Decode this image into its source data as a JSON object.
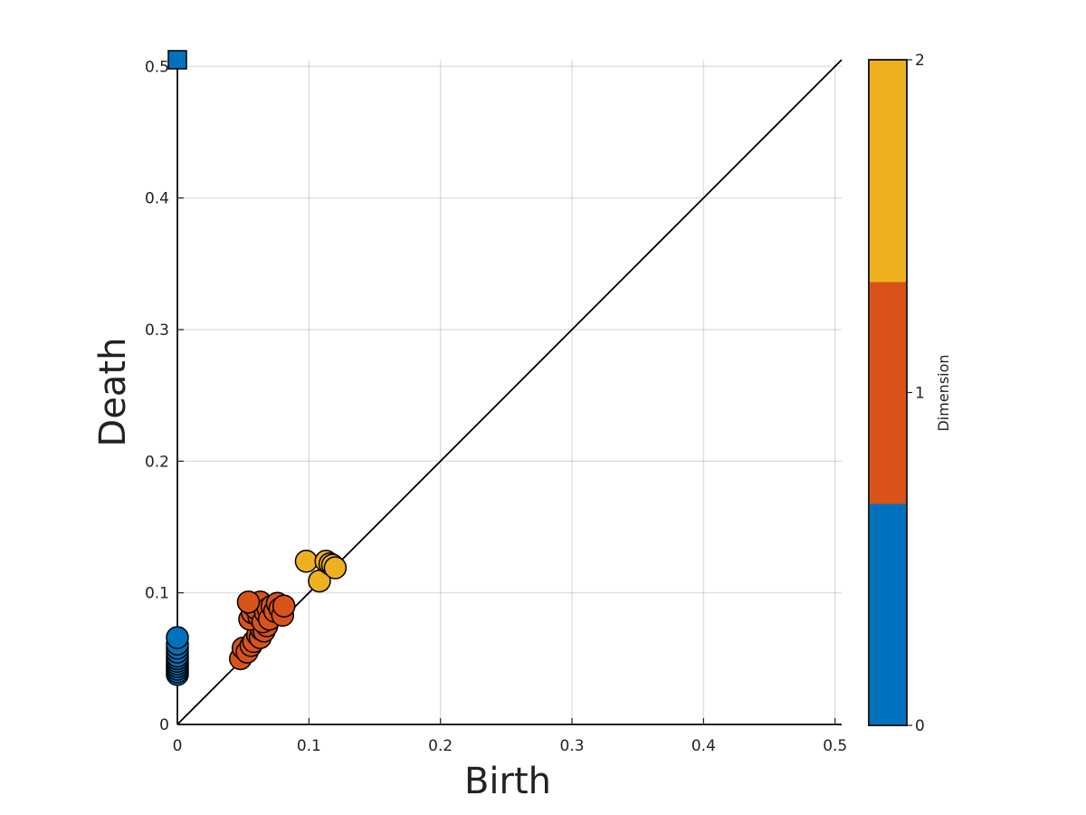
{
  "chart_data": {
    "type": "scatter",
    "title": "",
    "xlabel": "Birth",
    "ylabel": "Death",
    "xlim": [
      0,
      0.505
    ],
    "ylim": [
      0,
      0.505
    ],
    "xticks": [
      "0",
      "0.1",
      "0.2",
      "0.3",
      "0.4",
      "0.5"
    ],
    "yticks": [
      "0",
      "0.1",
      "0.2",
      "0.3",
      "0.4",
      "0.5"
    ],
    "grid": true,
    "diagonal": true,
    "colorbar": {
      "label": "Dimension",
      "ticks": [
        "0",
        "1",
        "2"
      ],
      "colors": [
        "#0072bd",
        "#d95319",
        "#edb120"
      ]
    },
    "series": [
      {
        "dimension": 0,
        "color": "#0072bd",
        "marker": "circle",
        "points": [
          [
            0,
            0.038
          ],
          [
            0,
            0.04
          ],
          [
            0,
            0.042
          ],
          [
            0,
            0.044
          ],
          [
            0,
            0.046
          ],
          [
            0,
            0.048
          ],
          [
            0,
            0.05
          ],
          [
            0,
            0.052
          ],
          [
            0,
            0.055
          ],
          [
            0,
            0.058
          ],
          [
            0,
            0.061
          ],
          [
            0,
            0.066
          ]
        ]
      },
      {
        "dimension": 0,
        "color": "#0072bd",
        "marker": "square",
        "points": [
          [
            0,
            0.505
          ]
        ]
      },
      {
        "dimension": 1,
        "color": "#d95319",
        "marker": "circle",
        "points": [
          [
            0.048,
            0.05
          ],
          [
            0.05,
            0.058
          ],
          [
            0.053,
            0.055
          ],
          [
            0.056,
            0.06
          ],
          [
            0.058,
            0.063
          ],
          [
            0.061,
            0.068
          ],
          [
            0.063,
            0.066
          ],
          [
            0.064,
            0.072
          ],
          [
            0.066,
            0.071
          ],
          [
            0.068,
            0.075
          ],
          [
            0.055,
            0.08
          ],
          [
            0.057,
            0.085
          ],
          [
            0.058,
            0.09
          ],
          [
            0.062,
            0.082
          ],
          [
            0.06,
            0.088
          ],
          [
            0.063,
            0.093
          ],
          [
            0.065,
            0.078
          ],
          [
            0.067,
            0.085
          ],
          [
            0.069,
            0.088
          ],
          [
            0.07,
            0.08
          ],
          [
            0.072,
            0.09
          ],
          [
            0.074,
            0.086
          ],
          [
            0.076,
            0.092
          ],
          [
            0.078,
            0.088
          ],
          [
            0.08,
            0.083
          ],
          [
            0.081,
            0.09
          ],
          [
            0.054,
            0.093
          ]
        ]
      },
      {
        "dimension": 2,
        "color": "#edb120",
        "marker": "circle",
        "points": [
          [
            0.098,
            0.124
          ],
          [
            0.108,
            0.109
          ],
          [
            0.113,
            0.124
          ],
          [
            0.116,
            0.122
          ],
          [
            0.118,
            0.121
          ],
          [
            0.12,
            0.119
          ]
        ]
      }
    ]
  }
}
